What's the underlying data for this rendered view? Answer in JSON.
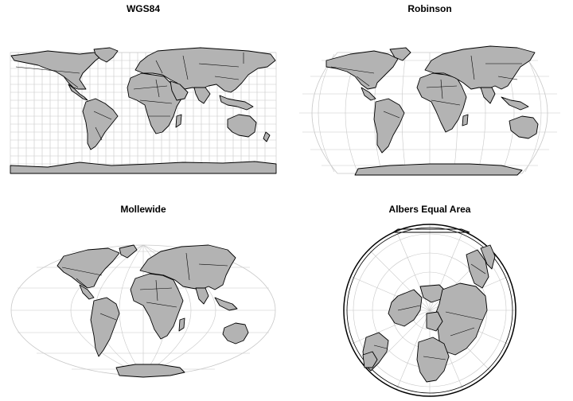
{
  "figure": {
    "panels": [
      {
        "id": "wgs84",
        "title": "WGS84"
      },
      {
        "id": "robinson",
        "title": "Robinson"
      },
      {
        "id": "mollweide",
        "title": "Mollewide"
      },
      {
        "id": "albers",
        "title": "Albers Equal Area"
      }
    ]
  },
  "colors": {
    "land": "#b3b3b3",
    "coastline": "#000000",
    "graticule": "#c8c8c8",
    "background": "#ffffff"
  }
}
